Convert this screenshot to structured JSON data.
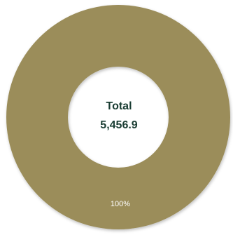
{
  "chart_data": {
    "type": "pie",
    "variant": "donut",
    "title": "",
    "center_label": "Total",
    "center_value": "5,456.9",
    "categories": [
      "Total"
    ],
    "values": [
      5456.9
    ],
    "slice_labels": [
      "100%"
    ],
    "colors": [
      "#9b8d5a"
    ],
    "legend": "none"
  }
}
